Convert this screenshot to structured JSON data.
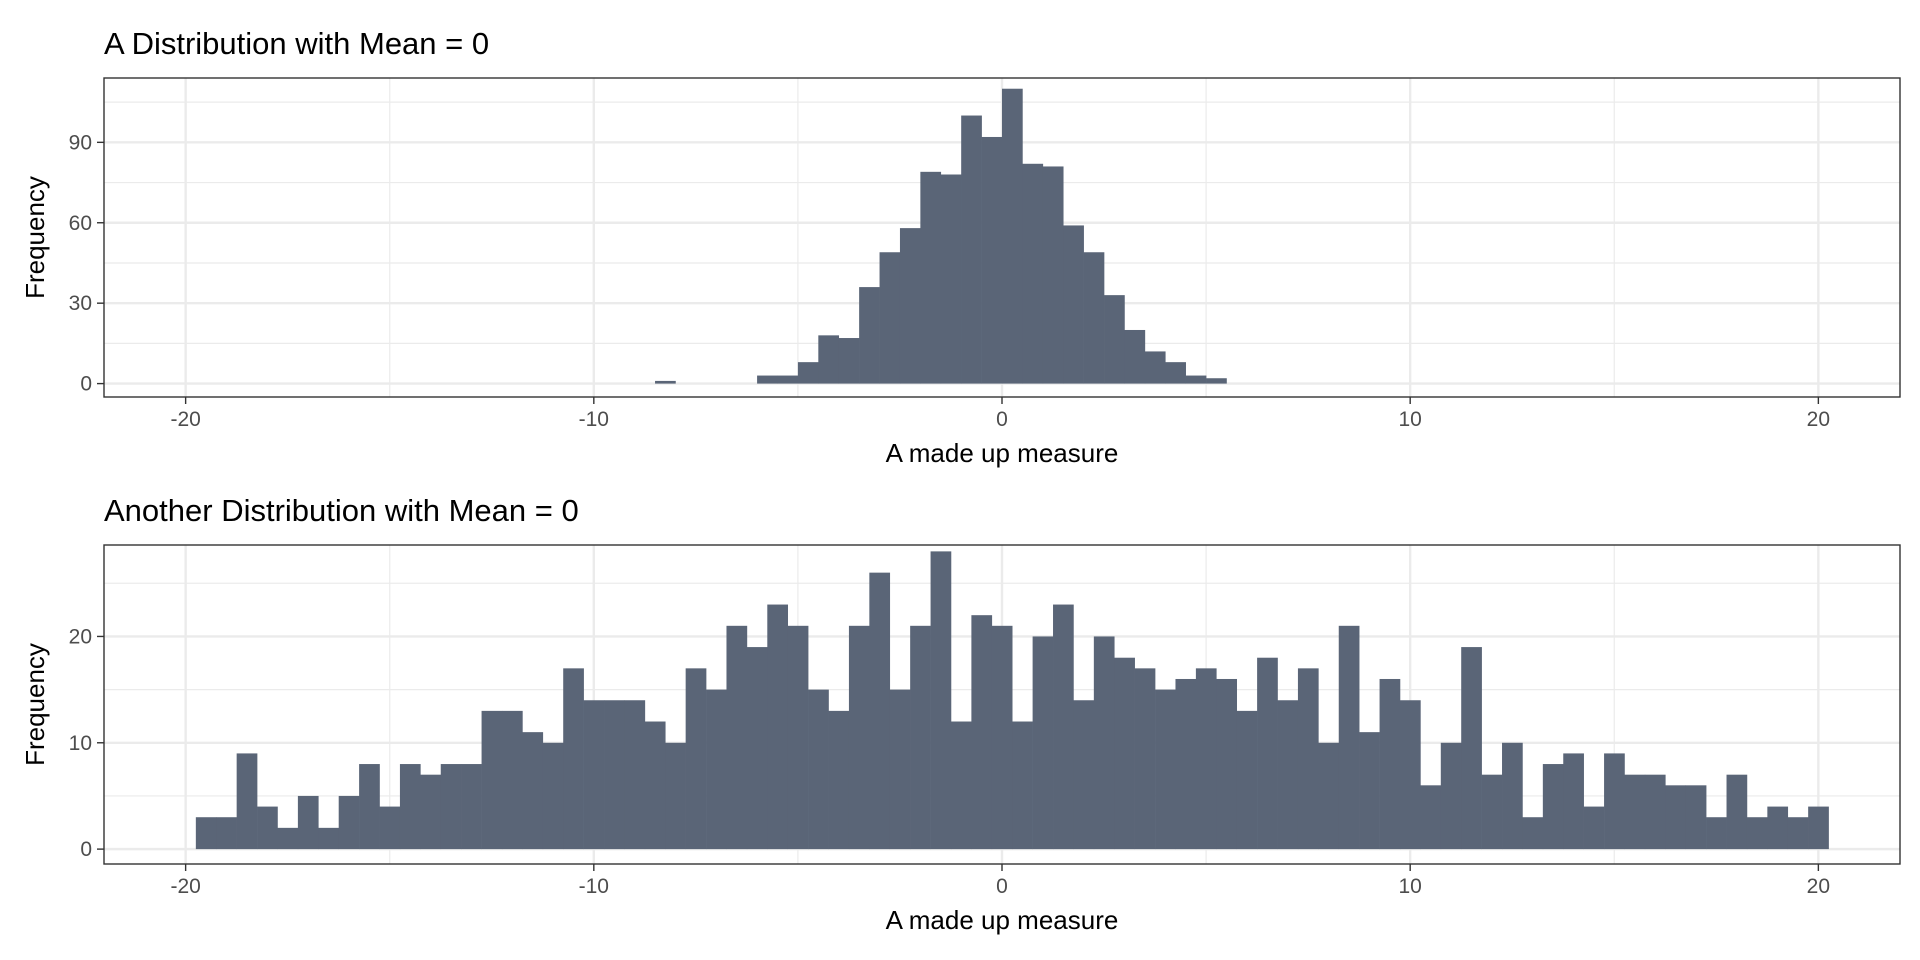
{
  "chart_data": [
    {
      "type": "bar",
      "subtype": "histogram",
      "title": "A Distribution with Mean = 0",
      "xlabel": "A made up measure",
      "ylabel": "Frequency",
      "xlim": [
        -22,
        22
      ],
      "ylim": [
        -5,
        114
      ],
      "x_ticks": [
        -20,
        -10,
        0,
        10,
        20
      ],
      "x_tick_labels": [
        "-20",
        "-10",
        "0",
        "10",
        "20"
      ],
      "y_ticks": [
        0,
        30,
        60,
        90
      ],
      "y_tick_labels": [
        "0",
        "30",
        "60",
        "90"
      ],
      "bin_width": 0.5,
      "grid": true,
      "bar_color": "#5a6577",
      "bins": [
        {
          "x0": -8.5,
          "x1": -8.0,
          "count": 1
        },
        {
          "x0": -6.0,
          "x1": -5.5,
          "count": 3
        },
        {
          "x0": -5.5,
          "x1": -5.0,
          "count": 3
        },
        {
          "x0": -5.0,
          "x1": -4.5,
          "count": 8
        },
        {
          "x0": -4.5,
          "x1": -4.0,
          "count": 18
        },
        {
          "x0": -4.0,
          "x1": -3.5,
          "count": 17
        },
        {
          "x0": -3.5,
          "x1": -3.0,
          "count": 36
        },
        {
          "x0": -3.0,
          "x1": -2.5,
          "count": 49
        },
        {
          "x0": -2.5,
          "x1": -2.0,
          "count": 58
        },
        {
          "x0": -2.0,
          "x1": -1.5,
          "count": 79
        },
        {
          "x0": -1.5,
          "x1": -1.0,
          "count": 78
        },
        {
          "x0": -1.0,
          "x1": -0.5,
          "count": 100
        },
        {
          "x0": -0.5,
          "x1": 0.0,
          "count": 92
        },
        {
          "x0": 0.0,
          "x1": 0.5,
          "count": 110
        },
        {
          "x0": 0.5,
          "x1": 1.0,
          "count": 82
        },
        {
          "x0": 1.0,
          "x1": 1.5,
          "count": 81
        },
        {
          "x0": 1.5,
          "x1": 2.0,
          "count": 59
        },
        {
          "x0": 2.0,
          "x1": 2.5,
          "count": 49
        },
        {
          "x0": 2.5,
          "x1": 3.0,
          "count": 33
        },
        {
          "x0": 3.0,
          "x1": 3.5,
          "count": 20
        },
        {
          "x0": 3.5,
          "x1": 4.0,
          "count": 12
        },
        {
          "x0": 4.0,
          "x1": 4.5,
          "count": 8
        },
        {
          "x0": 4.5,
          "x1": 5.0,
          "count": 3
        },
        {
          "x0": 5.0,
          "x1": 5.5,
          "count": 2
        }
      ]
    },
    {
      "type": "bar",
      "subtype": "histogram",
      "title": "Another Distribution with Mean = 0",
      "xlabel": "A made up measure",
      "ylabel": "Frequency",
      "xlim": [
        -22,
        22
      ],
      "ylim": [
        -1.4,
        28.6
      ],
      "x_ticks": [
        -20,
        -10,
        0,
        10,
        20
      ],
      "x_tick_labels": [
        "-20",
        "-10",
        "0",
        "10",
        "20"
      ],
      "y_ticks": [
        0,
        10,
        20
      ],
      "y_tick_labels": [
        "0",
        "10",
        "20"
      ],
      "bin_width": 0.5,
      "bin_start": -19.75,
      "grid": true,
      "bar_color": "#5a6577",
      "counts": [
        3,
        3,
        9,
        4,
        2,
        5,
        2,
        5,
        8,
        4,
        8,
        7,
        8,
        8,
        13,
        13,
        11,
        10,
        17,
        14,
        14,
        14,
        12,
        10,
        17,
        15,
        21,
        19,
        23,
        21,
        15,
        13,
        21,
        26,
        15,
        21,
        28,
        12,
        22,
        21,
        12,
        20,
        23,
        14,
        20,
        18,
        17,
        15,
        16,
        17,
        16,
        13,
        18,
        14,
        17,
        10,
        21,
        11,
        16,
        14,
        6,
        10,
        19,
        7,
        10,
        3,
        8,
        9,
        4,
        9,
        7,
        7,
        6,
        6,
        3,
        7,
        3,
        4,
        3,
        4
      ]
    }
  ]
}
